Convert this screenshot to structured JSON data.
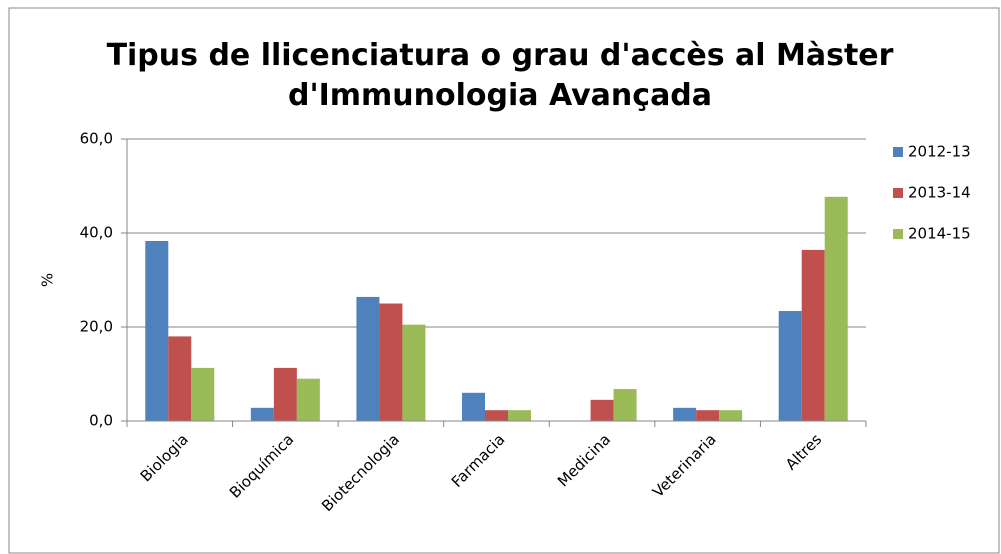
{
  "chart_data": {
    "type": "bar",
    "title": "Tipus de llicenciatura o grau d'accès al Màster d'Immunologia Avançada",
    "ylabel": "%",
    "categories": [
      "Biologia",
      "Bioquímica",
      "Biotecnologia",
      "Farmacia",
      "Medicina",
      "Veterinaria",
      "Altres"
    ],
    "series": [
      {
        "name": "2012-13",
        "color": "#4f81bd",
        "values": [
          38.3,
          2.8,
          26.4,
          6.0,
          0,
          2.8,
          23.4
        ]
      },
      {
        "name": "2013-14",
        "color": "#c0504d",
        "values": [
          18.0,
          11.3,
          25.0,
          2.3,
          4.5,
          2.3,
          36.4
        ]
      },
      {
        "name": "2014-15",
        "color": "#9bbb59",
        "values": [
          11.3,
          9.0,
          20.5,
          2.3,
          6.8,
          2.3,
          47.7
        ]
      }
    ],
    "ylim": [
      0,
      60
    ],
    "yticks": [
      {
        "value": 0,
        "label": "0,0"
      },
      {
        "value": 20,
        "label": "20,0"
      },
      {
        "value": 40,
        "label": "40,0"
      },
      {
        "value": 60,
        "label": "60,0"
      }
    ],
    "grid": true,
    "legend": "right"
  }
}
